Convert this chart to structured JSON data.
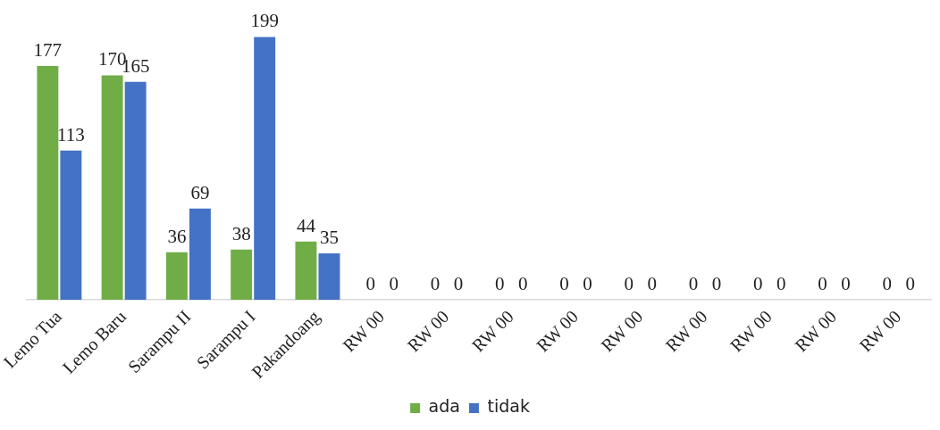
{
  "chart_data": {
    "type": "bar",
    "categories": [
      "Lemo Tua",
      "Lemo Baru",
      "Sarampu II",
      "Sarampu I",
      "Pakandoang",
      "RW 00",
      "RW 00",
      "RW 00",
      "RW 00",
      "RW 00",
      "RW 00",
      "RW 00",
      "RW 00",
      "RW 00"
    ],
    "series": [
      {
        "name": "ada",
        "color": "#70ad47",
        "values": [
          177,
          170,
          36,
          38,
          44,
          0,
          0,
          0,
          0,
          0,
          0,
          0,
          0,
          0
        ]
      },
      {
        "name": "tidak",
        "color": "#4472c4",
        "values": [
          113,
          165,
          69,
          199,
          35,
          0,
          0,
          0,
          0,
          0,
          0,
          0,
          0,
          0
        ]
      }
    ],
    "data_labels": true,
    "legend": "bottom",
    "grid": false
  }
}
